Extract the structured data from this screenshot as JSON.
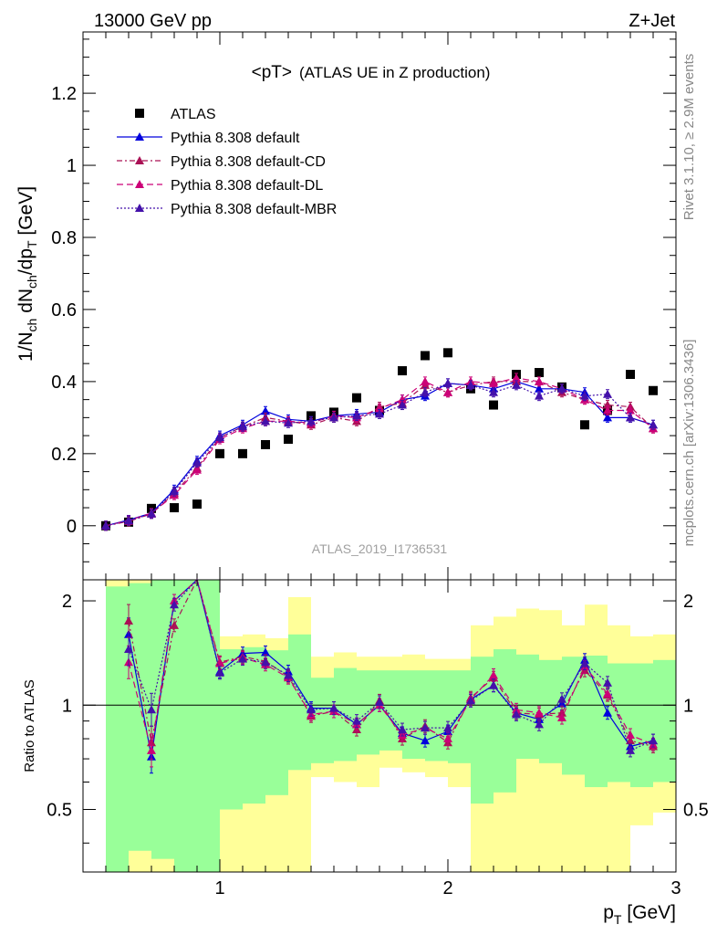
{
  "header": {
    "energy_label": "13000 GeV pp",
    "process_label": "Z+Jet",
    "rivet_label": "Rivet 3.1.10, ≥ 2.9M events",
    "mcplots_label": "mcplots.cern.ch [arXiv:1306.3436]",
    "analysis_id": "ATLAS_2019_I1736531"
  },
  "chart_data": [
    {
      "type": "scatter",
      "panel": "main",
      "title_main": "<pT>",
      "title_sub": "(ATLAS UE in Z production)",
      "ylabel_parts": [
        "1/N",
        "ch",
        " dN",
        "ch",
        "/dp",
        "T",
        " [GeV]"
      ],
      "xlim": [
        0.4,
        3.0
      ],
      "ylim": [
        -0.15,
        1.37
      ],
      "yticks": [
        0,
        0.2,
        0.4,
        0.6,
        0.8,
        1,
        1.2
      ],
      "ytick_labels": [
        "0",
        "0.2",
        "0.4",
        "0.6",
        "0.8",
        "1",
        "1.2"
      ],
      "legend_position": "top-left",
      "x": [
        0.5,
        0.6,
        0.7,
        0.8,
        0.9,
        1.0,
        1.1,
        1.2,
        1.3,
        1.4,
        1.5,
        1.6,
        1.7,
        1.8,
        1.9,
        2.0,
        2.1,
        2.2,
        2.3,
        2.4,
        2.5,
        2.6,
        2.7,
        2.8,
        2.9
      ],
      "series": [
        {
          "name": "ATLAS",
          "color": "#000000",
          "marker": "square",
          "line": "none",
          "values": [
            0.0,
            0.01,
            0.048,
            0.05,
            0.06,
            0.2,
            0.2,
            0.225,
            0.24,
            0.305,
            0.315,
            0.355,
            0.32,
            0.43,
            0.472,
            0.48,
            0.38,
            0.335,
            0.42,
            0.425,
            0.385,
            0.28,
            0.32,
            0.42,
            0.375
          ]
        },
        {
          "name": "Pythia 8.308 default",
          "color": "#0000dd",
          "marker": "triangle",
          "line": "solid",
          "values": [
            0.0,
            0.016,
            0.035,
            0.1,
            0.18,
            0.25,
            0.28,
            0.318,
            0.295,
            0.29,
            0.305,
            0.31,
            0.315,
            0.35,
            0.36,
            0.395,
            0.39,
            0.38,
            0.4,
            0.38,
            0.38,
            0.37,
            0.3,
            0.3,
            0.28
          ]
        },
        {
          "name": "Pythia 8.308 default-CD",
          "color": "#aa1155",
          "marker": "triangle",
          "line": "dashdot",
          "values": [
            0.0,
            0.012,
            0.033,
            0.09,
            0.16,
            0.245,
            0.275,
            0.3,
            0.29,
            0.28,
            0.3,
            0.29,
            0.33,
            0.34,
            0.39,
            0.37,
            0.39,
            0.4,
            0.4,
            0.4,
            0.37,
            0.35,
            0.335,
            0.33,
            0.27
          ]
        },
        {
          "name": "Pythia 8.308 default-DL",
          "color": "#cc0077",
          "marker": "triangle",
          "line": "dashed",
          "values": [
            0.0,
            0.015,
            0.035,
            0.085,
            0.155,
            0.24,
            0.27,
            0.29,
            0.29,
            0.285,
            0.305,
            0.3,
            0.325,
            0.35,
            0.4,
            0.37,
            0.4,
            0.395,
            0.41,
            0.4,
            0.38,
            0.35,
            0.32,
            0.32,
            0.27
          ]
        },
        {
          "name": "Pythia 8.308 default-MBR",
          "color": "#4411aa",
          "marker": "triangle",
          "line": "dotted",
          "values": [
            0.0,
            0.014,
            0.033,
            0.095,
            0.175,
            0.245,
            0.275,
            0.29,
            0.285,
            0.29,
            0.3,
            0.305,
            0.31,
            0.335,
            0.37,
            0.395,
            0.39,
            0.37,
            0.39,
            0.36,
            0.38,
            0.36,
            0.365,
            0.3,
            0.28
          ]
        }
      ]
    },
    {
      "type": "line",
      "panel": "ratio",
      "ylabel": "Ratio to ATLAS",
      "xlabel_main": "p",
      "xlabel_sub": "T",
      "xlabel_unit": " [GeV]",
      "xlim": [
        0.4,
        3.0
      ],
      "xticks": [
        1,
        2,
        3
      ],
      "xtick_labels": [
        "1",
        "2",
        "3"
      ],
      "ylim": [
        0.33,
        2.3
      ],
      "yticks": [
        0.5,
        1,
        2
      ],
      "ytick_labels": [
        "0.5",
        "1",
        "2"
      ],
      "reference_line": 1,
      "band_edges": [
        0.55,
        0.65,
        0.75,
        0.85,
        0.95,
        1.05,
        1.15,
        1.25,
        1.35,
        1.45,
        1.55,
        1.65,
        1.75,
        1.85,
        1.95,
        2.05,
        2.15,
        2.25,
        2.35,
        2.45,
        2.55,
        2.65,
        2.75,
        2.85,
        2.95
      ],
      "green_band": {
        "low": [
          0.33,
          0.38,
          0.36,
          0.33,
          0.33,
          0.5,
          0.52,
          0.55,
          0.65,
          0.68,
          0.69,
          0.72,
          0.74,
          0.7,
          0.69,
          0.68,
          0.52,
          0.56,
          0.7,
          0.68,
          0.63,
          0.58,
          0.6,
          0.58,
          0.6
        ],
        "high": [
          2.2,
          2.25,
          2.3,
          2.3,
          2.3,
          1.45,
          1.47,
          1.44,
          1.6,
          1.2,
          1.28,
          1.26,
          1.26,
          1.26,
          1.26,
          1.26,
          1.38,
          1.45,
          1.4,
          1.35,
          1.38,
          1.39,
          1.32,
          1.32,
          1.35
        ]
      },
      "yellow_band": {
        "low": [
          0.33,
          0.33,
          0.33,
          0.33,
          0.33,
          0.33,
          0.33,
          0.33,
          0.33,
          0.62,
          0.6,
          0.58,
          0.66,
          0.64,
          0.62,
          0.58,
          0.33,
          0.33,
          0.33,
          0.33,
          0.33,
          0.33,
          0.33,
          0.45,
          0.49
        ],
        "high": [
          2.3,
          2.3,
          2.3,
          2.3,
          2.3,
          1.58,
          1.6,
          1.56,
          2.05,
          1.38,
          1.42,
          1.38,
          1.38,
          1.4,
          1.36,
          1.36,
          1.7,
          1.8,
          1.9,
          1.88,
          1.7,
          1.95,
          1.7,
          1.58,
          1.6
        ]
      },
      "x": [
        0.6,
        0.7,
        0.8,
        0.9,
        1.0,
        1.1,
        1.2,
        1.3,
        1.4,
        1.5,
        1.6,
        1.7,
        1.8,
        1.9,
        2.0,
        2.1,
        2.2,
        2.3,
        2.4,
        2.5,
        2.6,
        2.7,
        2.8,
        2.9
      ],
      "series": [
        {
          "name": "Pythia 8.308 default",
          "color": "#0000dd",
          "line": "solid",
          "values": [
            1.6,
            0.71,
            2.0,
            2.5,
            1.25,
            1.41,
            1.42,
            1.25,
            0.98,
            0.98,
            0.88,
            1.0,
            0.83,
            0.79,
            0.84,
            1.04,
            1.14,
            0.95,
            0.91,
            1.01,
            1.35,
            0.95,
            0.76,
            0.79
          ]
        },
        {
          "name": "Pythia 8.308 default-CD",
          "color": "#aa1155",
          "line": "dashdot",
          "values": [
            1.75,
            0.78,
            1.7,
            2.5,
            1.33,
            1.38,
            1.34,
            1.21,
            0.93,
            0.96,
            0.85,
            1.03,
            0.8,
            0.87,
            0.78,
            1.05,
            1.2,
            0.95,
            0.94,
            0.95,
            1.26,
            1.07,
            0.79,
            0.76
          ]
        },
        {
          "name": "Pythia 8.308 default-DL",
          "color": "#cc0077",
          "line": "dashed",
          "values": [
            1.33,
            0.74,
            2.0,
            2.45,
            1.32,
            1.37,
            1.31,
            1.2,
            0.94,
            0.96,
            0.88,
            1.0,
            0.82,
            0.86,
            0.8,
            1.04,
            1.22,
            0.97,
            0.95,
            0.92,
            1.29,
            1.08,
            0.82,
            0.77
          ]
        },
        {
          "name": "Pythia 8.308 default-MBR",
          "color": "#4411aa",
          "line": "dotted",
          "values": [
            1.45,
            0.97,
            1.95,
            2.6,
            1.24,
            1.36,
            1.33,
            1.22,
            0.97,
            0.98,
            0.9,
            1.02,
            0.85,
            0.86,
            0.86,
            1.03,
            1.14,
            0.94,
            0.88,
            1.04,
            1.32,
            1.16,
            0.74,
            0.79
          ]
        }
      ]
    }
  ]
}
